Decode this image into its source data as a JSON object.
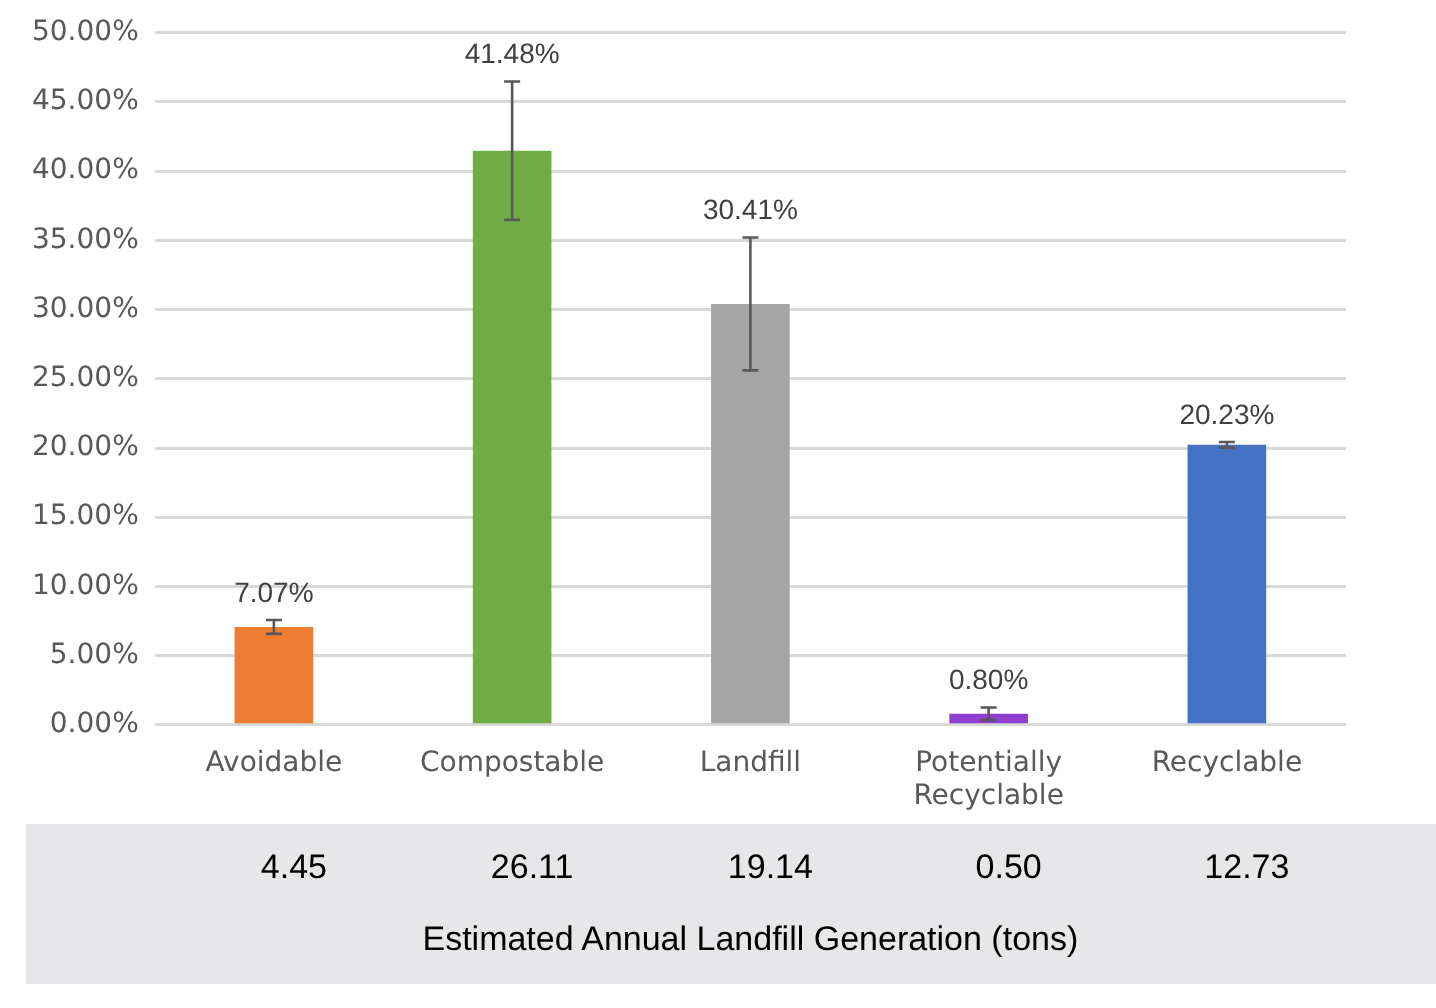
{
  "chart_data": {
    "type": "bar",
    "categories": [
      "Avoidable",
      "Compostable",
      "Landfill",
      "Potentially Recyclable",
      "Recyclable"
    ],
    "values": [
      7.07,
      41.48,
      30.41,
      0.8,
      20.23
    ],
    "colors": [
      "#ed7d31",
      "#70ad47",
      "#a5a5a5",
      "#8e3fcf",
      "#4472c4"
    ],
    "errors": [
      0.5,
      5,
      4.8,
      0.45,
      0.2
    ],
    "value_labels": [
      "7.07%",
      "41.48%",
      "30.41%",
      "0.80%",
      "20.23%"
    ],
    "ylim": [
      0,
      50
    ],
    "yticks": [
      {
        "value": 0,
        "label": "0.00%"
      },
      {
        "value": 5,
        "label": "5.00%"
      },
      {
        "value": 10,
        "label": "10.00%"
      },
      {
        "value": 15,
        "label": "15.00%"
      },
      {
        "value": 20,
        "label": "20.00%"
      },
      {
        "value": 25,
        "label": "25.00%"
      },
      {
        "value": 30,
        "label": "30.00%"
      },
      {
        "value": 35,
        "label": "35.00%"
      },
      {
        "value": 40,
        "label": "40.00%"
      },
      {
        "value": 45,
        "label": "45.00%"
      },
      {
        "value": 50,
        "label": "50.00%"
      }
    ],
    "grid": "y",
    "legend": false,
    "annotations": [
      "4.45",
      "26.11",
      "19.14",
      "0.50",
      "12.73",
      "Estimated Annual Landfill Generation (tons)"
    ]
  }
}
